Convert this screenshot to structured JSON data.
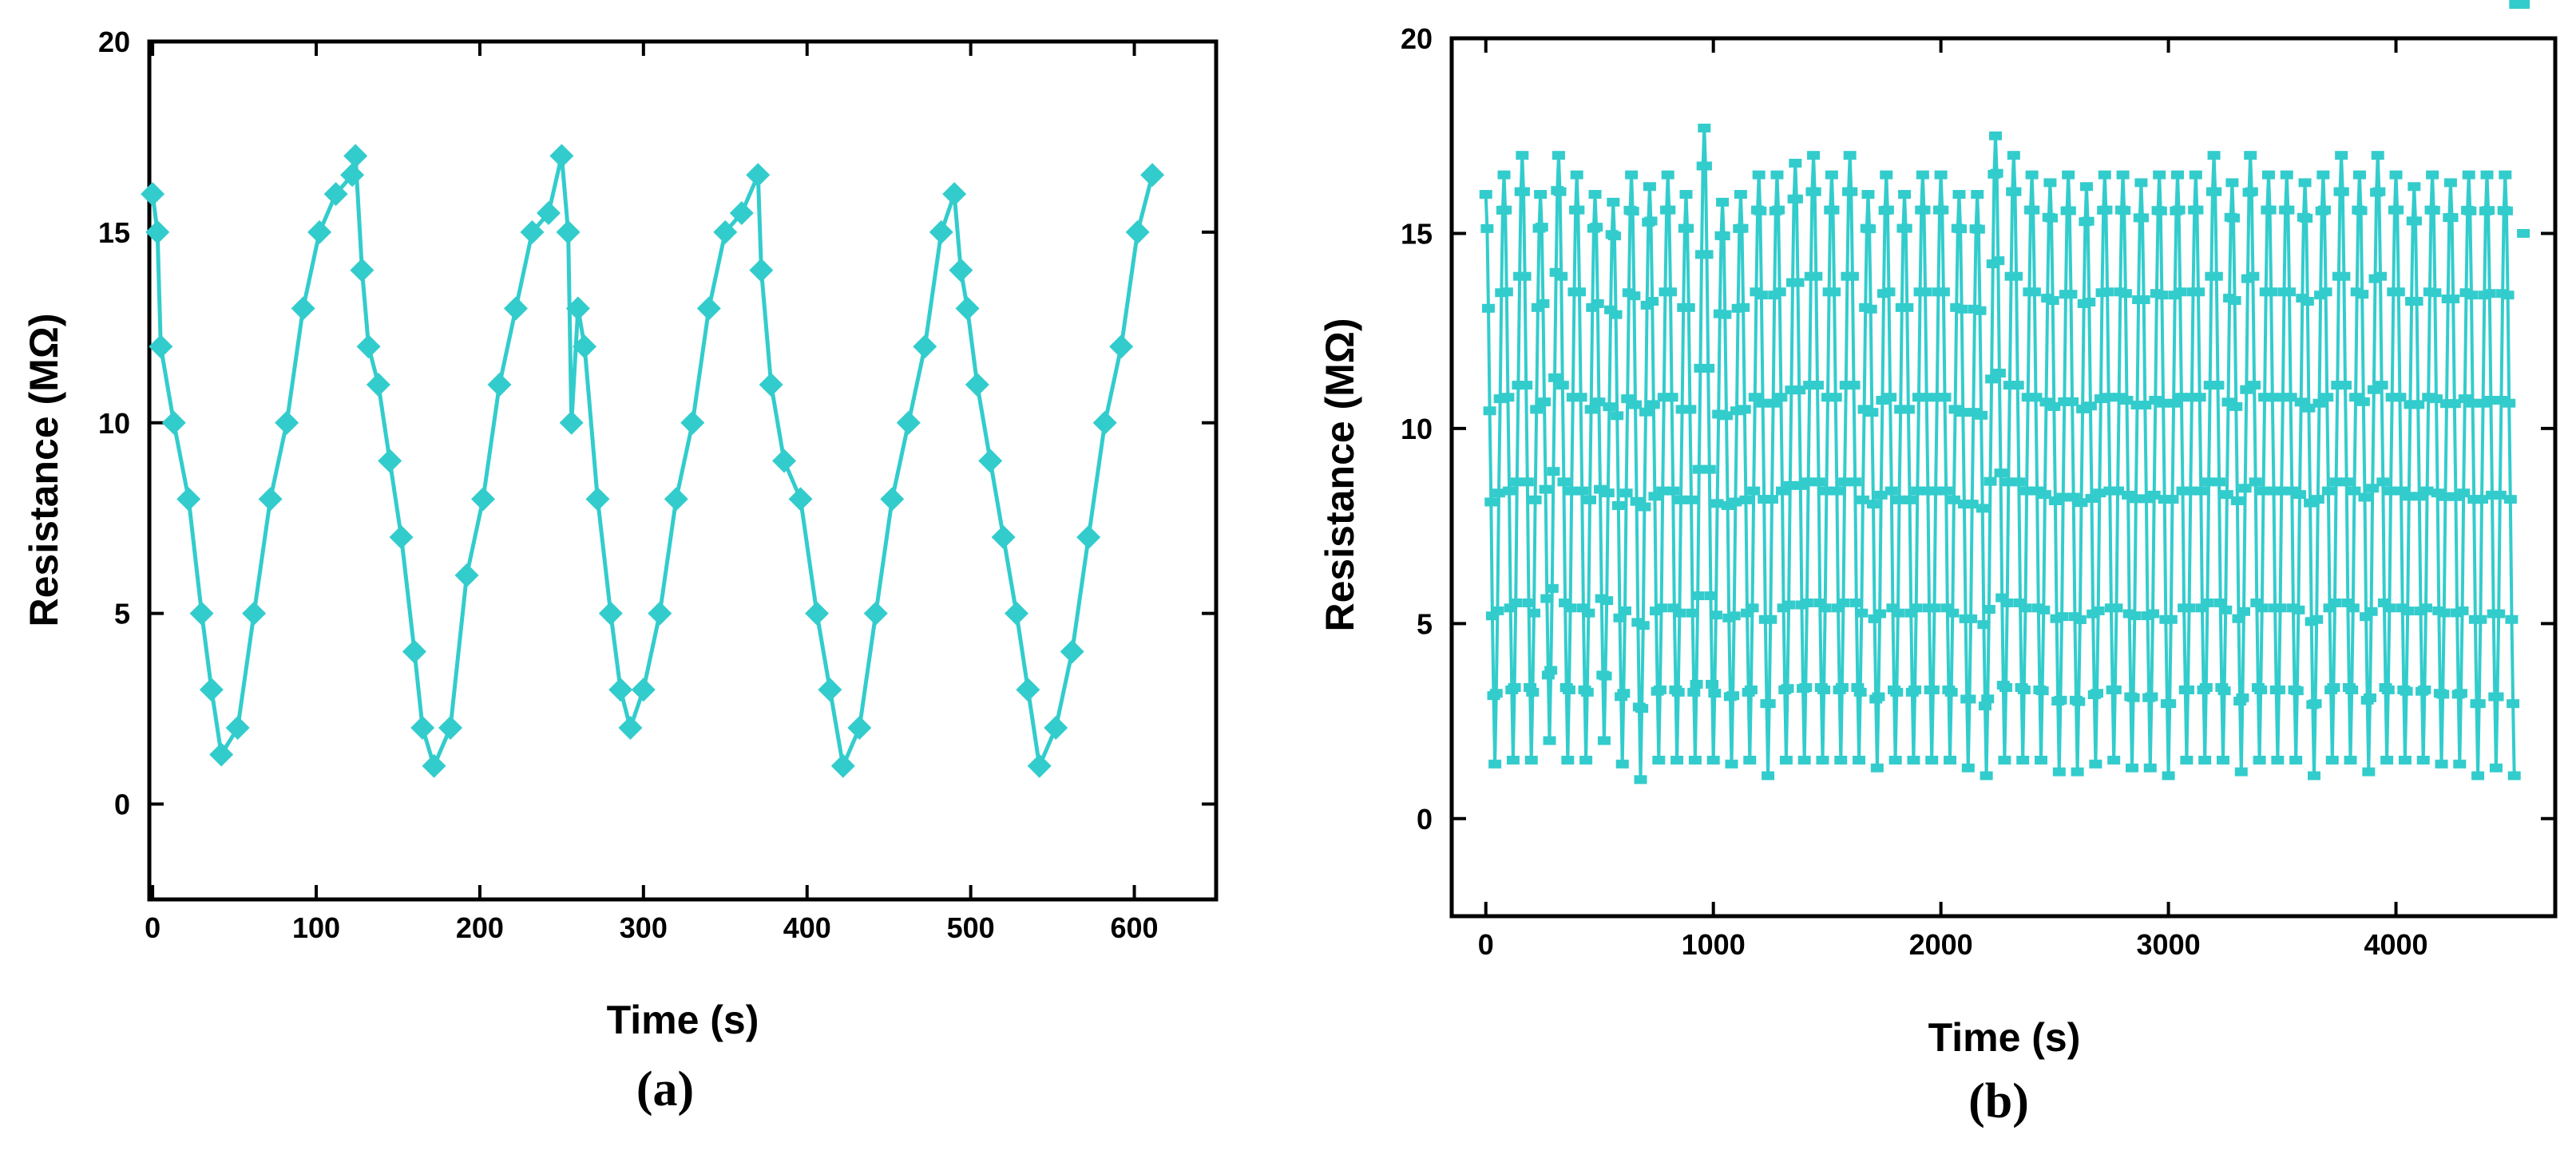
{
  "chart_data": [
    {
      "type": "line",
      "caption": "(a)",
      "title": "",
      "xlabel": "Time (s)",
      "ylabel": "Resistance (MΩ)",
      "xlim": [
        -2,
        650
      ],
      "ylim": [
        -2.5,
        20
      ],
      "xticks": [
        0,
        100,
        200,
        300,
        400,
        500,
        600
      ],
      "yticks": [
        0,
        5,
        10,
        15,
        20
      ],
      "marker": "diamond",
      "color": "#33cccc",
      "series": [
        {
          "name": "Resistance",
          "x": [
            0,
            3,
            5,
            13,
            22,
            30,
            36,
            42,
            52,
            62,
            72,
            82,
            92,
            102,
            112,
            122,
            124,
            128,
            132,
            138,
            145,
            152,
            160,
            165,
            172,
            182,
            192,
            202,
            212,
            222,
            232,
            242,
            250,
            254,
            256,
            260,
            264,
            272,
            280,
            286,
            292,
            300,
            310,
            320,
            330,
            340,
            350,
            360,
            370,
            372,
            378,
            386,
            396,
            406,
            414,
            422,
            432,
            442,
            452,
            462,
            472,
            482,
            490,
            494,
            498,
            504,
            512,
            520,
            528,
            535,
            542,
            552,
            562,
            572,
            582,
            592,
            602,
            611
          ],
          "y": [
            16,
            15,
            12,
            10,
            8,
            5,
            3,
            1.3,
            2,
            5,
            8,
            10,
            13,
            15,
            16,
            16.5,
            17,
            14,
            12,
            11,
            9,
            7,
            4,
            2,
            1,
            2,
            6,
            8,
            11,
            13,
            15,
            15.5,
            17,
            15,
            10,
            13,
            12,
            8,
            5,
            3,
            2,
            3,
            5,
            8,
            10,
            13,
            15,
            15.5,
            16.5,
            14,
            11,
            9,
            8,
            5,
            3,
            1,
            2,
            5,
            8,
            10,
            12,
            15,
            16,
            14,
            13,
            11,
            9,
            7,
            5,
            3,
            1,
            2,
            4,
            7,
            10,
            12,
            15,
            16.5
          ]
        }
      ]
    },
    {
      "type": "line",
      "caption": "(b)",
      "title": "",
      "xlabel": "Time (s)",
      "ylabel": "Resistance (MΩ)",
      "xlim": [
        -150,
        4700
      ],
      "ylim": [
        -2.5,
        20
      ],
      "xticks": [
        0,
        1000,
        2000,
        3000,
        4000
      ],
      "yticks": [
        0,
        5,
        10,
        15,
        20
      ],
      "marker": "square",
      "color": "#33cccc",
      "cycle_period_s": 80,
      "x_end": 4560,
      "cycle_peaks": [
        16,
        16.5,
        17,
        16,
        17,
        16.5,
        16,
        15.8,
        16.5,
        16.2,
        16.5,
        16,
        17.7,
        15.8,
        16,
        16.5,
        16.5,
        16.8,
        17,
        16.5,
        17,
        16,
        16.5,
        16,
        16.5,
        16.5,
        16,
        16,
        17.5,
        17,
        16.5,
        16.3,
        16.5,
        16.2,
        16.5,
        16.5,
        16.3,
        16.5,
        16.5,
        16.5,
        17,
        16.3,
        17,
        16.5,
        16.5,
        16.3,
        16.5,
        17,
        16.5,
        17,
        16.5,
        16.2,
        16.5,
        16.3,
        16.5,
        16.5,
        16.5
      ],
      "cycle_troughs": [
        1.4,
        1.5,
        1.5,
        2,
        1.5,
        1.5,
        2,
        1.4,
        1,
        1.5,
        1.5,
        1.5,
        1.5,
        1.4,
        1.5,
        1.1,
        1.5,
        1.5,
        1.5,
        1.5,
        1.5,
        1.3,
        1.5,
        1.5,
        1.5,
        1.5,
        1.3,
        1.1,
        1.5,
        1.5,
        1.5,
        1.2,
        1.2,
        1.4,
        1.5,
        1.3,
        1.3,
        1.1,
        1.5,
        1.5,
        1.5,
        1.2,
        1.5,
        1.5,
        1.5,
        1.1,
        1.5,
        1.5,
        1.2,
        1.5,
        1.5,
        1.5,
        1.4,
        1.4,
        1.1,
        1.3,
        1.1
      ]
    }
  ]
}
